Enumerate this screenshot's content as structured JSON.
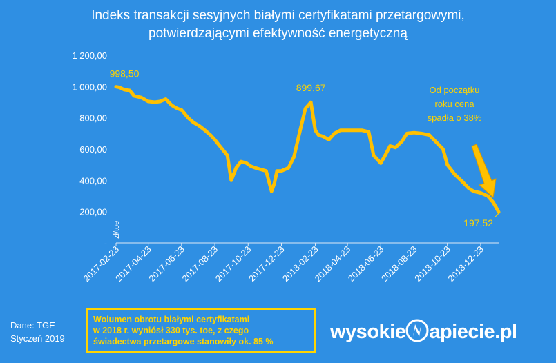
{
  "header": {
    "title_line1": "Indeks transakcji sesyjnych białymi certyfikatami przetargowymi,",
    "title_line2": "potwierdzającymi efektywność energetyczną"
  },
  "chart_data": {
    "type": "line",
    "ylabel": "zł/toe",
    "ylim": [
      0,
      1200
    ],
    "yticks": [
      0,
      200,
      400,
      600,
      800,
      1000,
      1200
    ],
    "ytick_labels": [
      "-",
      "200,00",
      "400,00",
      "600,00",
      "800,00",
      "1 000,00",
      "1 200,00"
    ],
    "xtick_labels": [
      "2017-02-23",
      "2017-04-23",
      "2017-06-23",
      "2017-08-23",
      "2017-10-23",
      "2017-12-23",
      "2018-02-23",
      "2018-04-23",
      "2018-06-23",
      "2018-08-23",
      "2018-10-23",
      "2018-12-23"
    ],
    "grid": false,
    "line_color": "#ffc000",
    "x": [
      "2017-02-23",
      "2017-03-01",
      "2017-03-10",
      "2017-03-20",
      "2017-03-28",
      "2017-04-10",
      "2017-04-23",
      "2017-05-05",
      "2017-05-15",
      "2017-05-25",
      "2017-06-05",
      "2017-06-15",
      "2017-06-23",
      "2017-06-28",
      "2017-07-05",
      "2017-07-15",
      "2017-07-25",
      "2017-08-05",
      "2017-08-15",
      "2017-08-23",
      "2017-09-01",
      "2017-09-08",
      "2017-09-15",
      "2017-09-22",
      "2017-10-01",
      "2017-10-10",
      "2017-10-20",
      "2017-10-28",
      "2017-11-05",
      "2017-11-15",
      "2017-11-25",
      "2017-12-05",
      "2017-12-10",
      "2017-12-15",
      "2017-12-23",
      "2018-01-05",
      "2018-01-15",
      "2018-01-25",
      "2018-02-05",
      "2018-02-15",
      "2018-02-23",
      "2018-03-01",
      "2018-03-10",
      "2018-03-20",
      "2018-03-30",
      "2018-04-10",
      "2018-04-23",
      "2018-05-05",
      "2018-05-20",
      "2018-06-01",
      "2018-06-10",
      "2018-06-23",
      "2018-07-01",
      "2018-07-10",
      "2018-07-20",
      "2018-08-01",
      "2018-08-10",
      "2018-08-23",
      "2018-09-05",
      "2018-09-20",
      "2018-10-01",
      "2018-10-15",
      "2018-10-23",
      "2018-11-05",
      "2018-11-20",
      "2018-12-01",
      "2018-12-10",
      "2018-12-23",
      "2019-01-05",
      "2019-01-15",
      "2019-01-25"
    ],
    "values": [
      998.5,
      995,
      980,
      975,
      940,
      930,
      905,
      900,
      905,
      920,
      880,
      860,
      850,
      830,
      800,
      770,
      750,
      720,
      690,
      660,
      620,
      590,
      560,
      400,
      480,
      520,
      510,
      490,
      480,
      470,
      460,
      330,
      380,
      460,
      460,
      480,
      550,
      700,
      860,
      899.67,
      720,
      690,
      680,
      660,
      700,
      720,
      720,
      720,
      720,
      710,
      560,
      510,
      560,
      620,
      610,
      650,
      700,
      705,
      700,
      690,
      650,
      600,
      500,
      440,
      390,
      350,
      330,
      320,
      300,
      260,
      197.52
    ],
    "annotations": [
      {
        "x": "2017-02-23",
        "y": 998.5,
        "text": "998,50"
      },
      {
        "x": "2018-02-15",
        "y": 899.67,
        "text": "899,67"
      },
      {
        "x": "2019-01-25",
        "y": 197.52,
        "text": "197,52"
      }
    ],
    "note_lines": [
      "Od początku",
      "roku cena",
      "spadła o 38%"
    ]
  },
  "footer": {
    "source_line1": "Dane: TGE",
    "source_line2": "Styczeń 2019",
    "info_line1": "Wolumen obrotu białymi certyfikatami",
    "info_line2": "w 2018 r. wyniósł  330 tys. toe, z czego",
    "info_line3": "świadectwa przetargowe stanowiły ok. 85 %",
    "logo_left": "wysokie",
    "logo_right": "apiecie.pl"
  },
  "colors": {
    "background": "#2f8fe3",
    "accent": "#ffc000",
    "text": "#ffffff"
  }
}
